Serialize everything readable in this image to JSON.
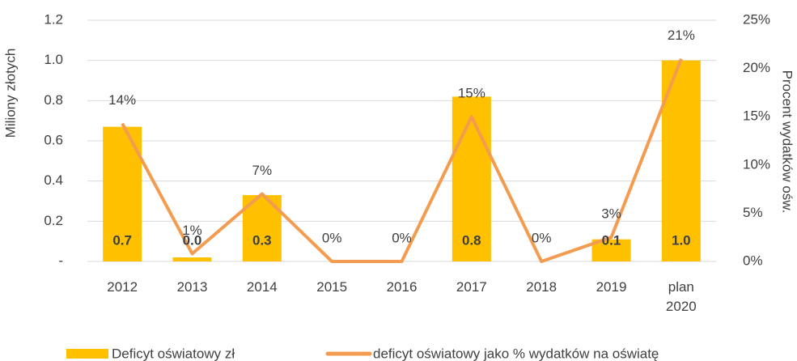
{
  "chart_data": {
    "type": "bar_line",
    "ylabel": "Miliony złotych",
    "y2label": "Procent wydatków ośw.",
    "categories": [
      "2012",
      "2013",
      "2014",
      "2015",
      "2016",
      "2017",
      "2018",
      "2019",
      "plan 2020"
    ],
    "series": [
      {
        "name": "Deficyt oświatowy zł",
        "type": "bar",
        "color": "#ffc000",
        "values": [
          0.67,
          0.02,
          0.33,
          0,
          0,
          0.82,
          0,
          0.11,
          1.0
        ],
        "value_labels": [
          "0.7",
          "0.0",
          "0.3",
          null,
          null,
          "0.8",
          null,
          "0.1",
          "1.0"
        ]
      },
      {
        "name": "deficyt oświatowy jako % wydatków na oświatę",
        "type": "line",
        "axis": "y2",
        "color": "#f39c50",
        "values": [
          14.3,
          0.8,
          7,
          0,
          0,
          15,
          0,
          2.5,
          21
        ],
        "value_labels": [
          "14%",
          "1%",
          "7%",
          "0%",
          "0%",
          "15%",
          "0%",
          "3%",
          "21%"
        ]
      }
    ],
    "ylim": [
      0,
      1.2
    ],
    "yticks": [
      {
        "value": 0,
        "label": "-"
      },
      0.2,
      0.4,
      0.6,
      0.8,
      {
        "value": 1,
        "label": "1.0"
      },
      1.2
    ],
    "y2lim": [
      0,
      25
    ],
    "y2ticks": [
      {
        "value": 0,
        "label": "0%"
      },
      {
        "value": 5,
        "label": "5%"
      },
      {
        "value": 10,
        "label": "10%"
      },
      {
        "value": 15,
        "label": "15%"
      },
      {
        "value": 20,
        "label": "20%"
      },
      {
        "value": 25,
        "label": "25%"
      }
    ],
    "grid": true,
    "legend": "bottom"
  }
}
